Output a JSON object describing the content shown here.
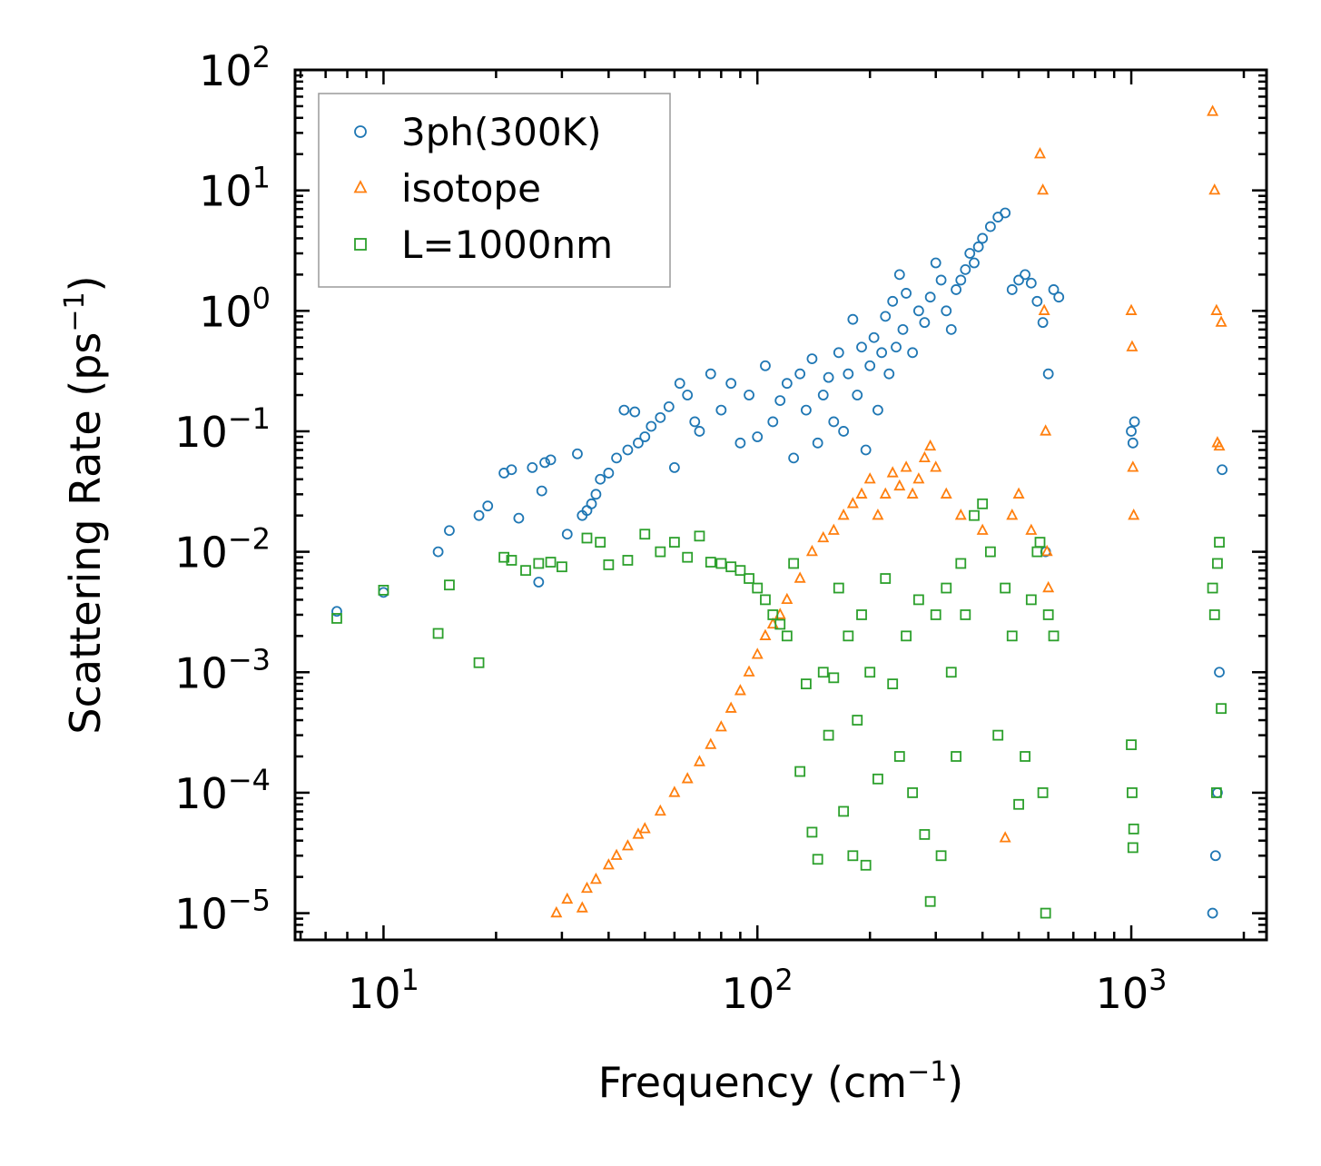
{
  "chart_data": {
    "type": "scatter",
    "title": "",
    "xlabel": "Frequency (cm",
    "xlabel_sup": "−1",
    "xlabel_end": ")",
    "ylabel": "Scattering Rate (ps",
    "ylabel_sup": "−1",
    "ylabel_end": ")",
    "xscale": "log",
    "yscale": "log",
    "xlim": [
      5.8,
      2300
    ],
    "ylim": [
      6e-06,
      100
    ],
    "x_ticks": [
      {
        "value": 10,
        "base": "10",
        "exp": "1"
      },
      {
        "value": 100,
        "base": "10",
        "exp": "2"
      },
      {
        "value": 1000,
        "base": "10",
        "exp": "3"
      }
    ],
    "y_ticks": [
      {
        "value": 1e-05,
        "base": "10",
        "exp": "−5"
      },
      {
        "value": 0.0001,
        "base": "10",
        "exp": "−4"
      },
      {
        "value": 0.001,
        "base": "10",
        "exp": "−3"
      },
      {
        "value": 0.01,
        "base": "10",
        "exp": "−2"
      },
      {
        "value": 0.1,
        "base": "10",
        "exp": "−1"
      },
      {
        "value": 1,
        "base": "10",
        "exp": "0"
      },
      {
        "value": 10,
        "base": "10",
        "exp": "1"
      },
      {
        "value": 100,
        "base": "10",
        "exp": "2"
      }
    ],
    "legend_position": "top-left",
    "series": [
      {
        "name": "3ph(300K)",
        "marker": "circle",
        "color": "#1f77b4",
        "points": [
          [
            7.5,
            0.0032
          ],
          [
            10,
            0.0046
          ],
          [
            14,
            0.01
          ],
          [
            15,
            0.015
          ],
          [
            18,
            0.02
          ],
          [
            19,
            0.024
          ],
          [
            21,
            0.045
          ],
          [
            22,
            0.048
          ],
          [
            23,
            0.019
          ],
          [
            25,
            0.05
          ],
          [
            26,
            0.0056
          ],
          [
            26.5,
            0.032
          ],
          [
            27,
            0.055
          ],
          [
            28,
            0.058
          ],
          [
            31,
            0.014
          ],
          [
            33,
            0.065
          ],
          [
            34,
            0.02
          ],
          [
            35,
            0.022
          ],
          [
            36,
            0.025
          ],
          [
            37,
            0.03
          ],
          [
            38,
            0.04
          ],
          [
            40,
            0.045
          ],
          [
            42,
            0.06
          ],
          [
            44,
            0.15
          ],
          [
            45,
            0.07
          ],
          [
            47,
            0.145
          ],
          [
            48,
            0.08
          ],
          [
            50,
            0.09
          ],
          [
            52,
            0.11
          ],
          [
            55,
            0.13
          ],
          [
            58,
            0.16
          ],
          [
            60,
            0.05
          ],
          [
            62,
            0.25
          ],
          [
            65,
            0.2
          ],
          [
            68,
            0.12
          ],
          [
            70,
            0.1
          ],
          [
            75,
            0.3
          ],
          [
            80,
            0.15
          ],
          [
            85,
            0.25
          ],
          [
            90,
            0.08
          ],
          [
            95,
            0.2
          ],
          [
            100,
            0.09
          ],
          [
            105,
            0.35
          ],
          [
            110,
            0.12
          ],
          [
            115,
            0.18
          ],
          [
            120,
            0.25
          ],
          [
            125,
            0.06
          ],
          [
            130,
            0.3
          ],
          [
            135,
            0.15
          ],
          [
            140,
            0.4
          ],
          [
            145,
            0.08
          ],
          [
            150,
            0.2
          ],
          [
            155,
            0.28
          ],
          [
            160,
            0.12
          ],
          [
            165,
            0.45
          ],
          [
            170,
            0.1
          ],
          [
            175,
            0.3
          ],
          [
            180,
            0.85
          ],
          [
            185,
            0.2
          ],
          [
            190,
            0.5
          ],
          [
            195,
            0.07
          ],
          [
            200,
            0.35
          ],
          [
            205,
            0.6
          ],
          [
            210,
            0.15
          ],
          [
            215,
            0.45
          ],
          [
            220,
            0.9
          ],
          [
            225,
            0.3
          ],
          [
            230,
            1.2
          ],
          [
            235,
            0.5
          ],
          [
            240,
            2.0
          ],
          [
            245,
            0.7
          ],
          [
            250,
            1.4
          ],
          [
            260,
            0.45
          ],
          [
            270,
            1.0
          ],
          [
            280,
            0.8
          ],
          [
            290,
            1.3
          ],
          [
            300,
            2.5
          ],
          [
            310,
            1.8
          ],
          [
            320,
            1.0
          ],
          [
            330,
            0.7
          ],
          [
            340,
            1.5
          ],
          [
            350,
            1.8
          ],
          [
            360,
            2.2
          ],
          [
            370,
            3.0
          ],
          [
            380,
            2.5
          ],
          [
            390,
            3.4
          ],
          [
            400,
            4.0
          ],
          [
            420,
            5.0
          ],
          [
            440,
            6.0
          ],
          [
            460,
            6.5
          ],
          [
            480,
            1.5
          ],
          [
            500,
            1.8
          ],
          [
            520,
            2.0
          ],
          [
            540,
            1.7
          ],
          [
            560,
            1.2
          ],
          [
            580,
            0.8
          ],
          [
            590,
            0.01
          ],
          [
            600,
            0.3
          ],
          [
            620,
            1.5
          ],
          [
            640,
            1.3
          ],
          [
            1000,
            0.1
          ],
          [
            1010,
            0.08
          ],
          [
            1020,
            0.12
          ],
          [
            1650,
            1e-05
          ],
          [
            1680,
            3e-05
          ],
          [
            1700,
            0.0001
          ],
          [
            1720,
            0.001
          ],
          [
            1750,
            0.048
          ]
        ]
      },
      {
        "name": "isotope",
        "marker": "triangle",
        "color": "#ff7f0e",
        "points": [
          [
            29,
            1e-05
          ],
          [
            31,
            1.3e-05
          ],
          [
            34,
            1.1e-05
          ],
          [
            35,
            1.6e-05
          ],
          [
            37,
            1.9e-05
          ],
          [
            40,
            2.5e-05
          ],
          [
            42,
            3e-05
          ],
          [
            45,
            3.6e-05
          ],
          [
            48,
            4.5e-05
          ],
          [
            50,
            5e-05
          ],
          [
            55,
            7e-05
          ],
          [
            60,
            0.0001
          ],
          [
            65,
            0.00013
          ],
          [
            70,
            0.00018
          ],
          [
            75,
            0.00025
          ],
          [
            80,
            0.00035
          ],
          [
            85,
            0.0005
          ],
          [
            90,
            0.0007
          ],
          [
            95,
            0.001
          ],
          [
            100,
            0.0014
          ],
          [
            105,
            0.002
          ],
          [
            110,
            0.0025
          ],
          [
            115,
            0.003
          ],
          [
            120,
            0.004
          ],
          [
            130,
            0.006
          ],
          [
            140,
            0.01
          ],
          [
            150,
            0.013
          ],
          [
            160,
            0.015
          ],
          [
            170,
            0.02
          ],
          [
            180,
            0.025
          ],
          [
            190,
            0.03
          ],
          [
            200,
            0.04
          ],
          [
            210,
            0.02
          ],
          [
            220,
            0.03
          ],
          [
            230,
            0.045
          ],
          [
            240,
            0.035
          ],
          [
            250,
            0.05
          ],
          [
            260,
            0.03
          ],
          [
            270,
            0.04
          ],
          [
            280,
            0.06
          ],
          [
            290,
            0.075
          ],
          [
            300,
            0.05
          ],
          [
            320,
            0.03
          ],
          [
            350,
            0.02
          ],
          [
            400,
            0.015
          ],
          [
            460,
            4.2e-05
          ],
          [
            480,
            0.02
          ],
          [
            500,
            0.03
          ],
          [
            540,
            0.015
          ],
          [
            570,
            20
          ],
          [
            580,
            10
          ],
          [
            585,
            1.0
          ],
          [
            590,
            0.1
          ],
          [
            595,
            0.01
          ],
          [
            600,
            0.005
          ],
          [
            1000,
            1.0
          ],
          [
            1005,
            0.5
          ],
          [
            1010,
            0.05
          ],
          [
            1015,
            0.02
          ],
          [
            1650,
            45
          ],
          [
            1670,
            10
          ],
          [
            1690,
            1.0
          ],
          [
            1700,
            0.08
          ],
          [
            1720,
            0.075
          ],
          [
            1740,
            0.8
          ]
        ]
      },
      {
        "name": "L=1000nm",
        "marker": "square",
        "color": "#2ca02c",
        "points": [
          [
            7.5,
            0.0028
          ],
          [
            10,
            0.0048
          ],
          [
            14,
            0.0021
          ],
          [
            15,
            0.0053
          ],
          [
            18,
            0.0012
          ],
          [
            21,
            0.009
          ],
          [
            22,
            0.0085
          ],
          [
            24,
            0.007
          ],
          [
            26,
            0.008
          ],
          [
            28,
            0.0082
          ],
          [
            30,
            0.0075
          ],
          [
            35,
            0.013
          ],
          [
            38,
            0.012
          ],
          [
            40,
            0.0078
          ],
          [
            45,
            0.0085
          ],
          [
            50,
            0.014
          ],
          [
            55,
            0.01
          ],
          [
            60,
            0.012
          ],
          [
            65,
            0.009
          ],
          [
            70,
            0.0135
          ],
          [
            75,
            0.0082
          ],
          [
            80,
            0.008
          ],
          [
            85,
            0.0075
          ],
          [
            90,
            0.007
          ],
          [
            95,
            0.006
          ],
          [
            100,
            0.005
          ],
          [
            105,
            0.004
          ],
          [
            110,
            0.003
          ],
          [
            115,
            0.0025
          ],
          [
            120,
            0.002
          ],
          [
            125,
            0.008
          ],
          [
            130,
            0.00015
          ],
          [
            135,
            0.0008
          ],
          [
            140,
            4.7e-05
          ],
          [
            145,
            2.8e-05
          ],
          [
            150,
            0.001
          ],
          [
            155,
            0.0003
          ],
          [
            160,
            0.0009
          ],
          [
            165,
            0.005
          ],
          [
            170,
            7e-05
          ],
          [
            175,
            0.002
          ],
          [
            180,
            3e-05
          ],
          [
            185,
            0.0004
          ],
          [
            190,
            0.003
          ],
          [
            195,
            2.5e-05
          ],
          [
            200,
            0.001
          ],
          [
            210,
            0.00013
          ],
          [
            220,
            0.006
          ],
          [
            230,
            0.0008
          ],
          [
            240,
            0.0002
          ],
          [
            250,
            0.002
          ],
          [
            260,
            0.0001
          ],
          [
            270,
            0.004
          ],
          [
            280,
            4.5e-05
          ],
          [
            290,
            1.25e-05
          ],
          [
            300,
            0.003
          ],
          [
            310,
            3e-05
          ],
          [
            320,
            0.005
          ],
          [
            330,
            0.001
          ],
          [
            340,
            0.0002
          ],
          [
            350,
            0.008
          ],
          [
            360,
            0.003
          ],
          [
            380,
            0.02
          ],
          [
            400,
            0.025
          ],
          [
            420,
            0.01
          ],
          [
            440,
            0.0003
          ],
          [
            460,
            0.005
          ],
          [
            480,
            0.002
          ],
          [
            500,
            8e-05
          ],
          [
            520,
            0.0002
          ],
          [
            540,
            0.004
          ],
          [
            560,
            0.01
          ],
          [
            570,
            0.012
          ],
          [
            580,
            0.0001
          ],
          [
            590,
            1e-05
          ],
          [
            600,
            0.003
          ],
          [
            620,
            0.002
          ],
          [
            1000,
            0.00025
          ],
          [
            1005,
            0.0001
          ],
          [
            1010,
            3.5e-05
          ],
          [
            1015,
            5e-05
          ],
          [
            1650,
            0.005
          ],
          [
            1670,
            0.003
          ],
          [
            1690,
            0.0001
          ],
          [
            1700,
            0.008
          ],
          [
            1720,
            0.012
          ],
          [
            1740,
            0.0005
          ]
        ]
      }
    ]
  }
}
